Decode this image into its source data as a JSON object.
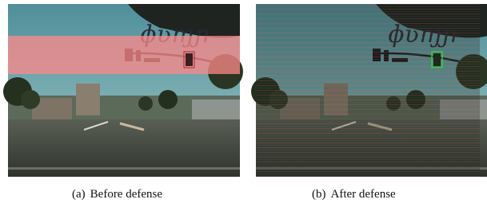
{
  "figure": {
    "subfigures": [
      {
        "label": "(a)",
        "caption": "Before defense"
      },
      {
        "label": "(b)",
        "caption": "After defense"
      }
    ]
  }
}
